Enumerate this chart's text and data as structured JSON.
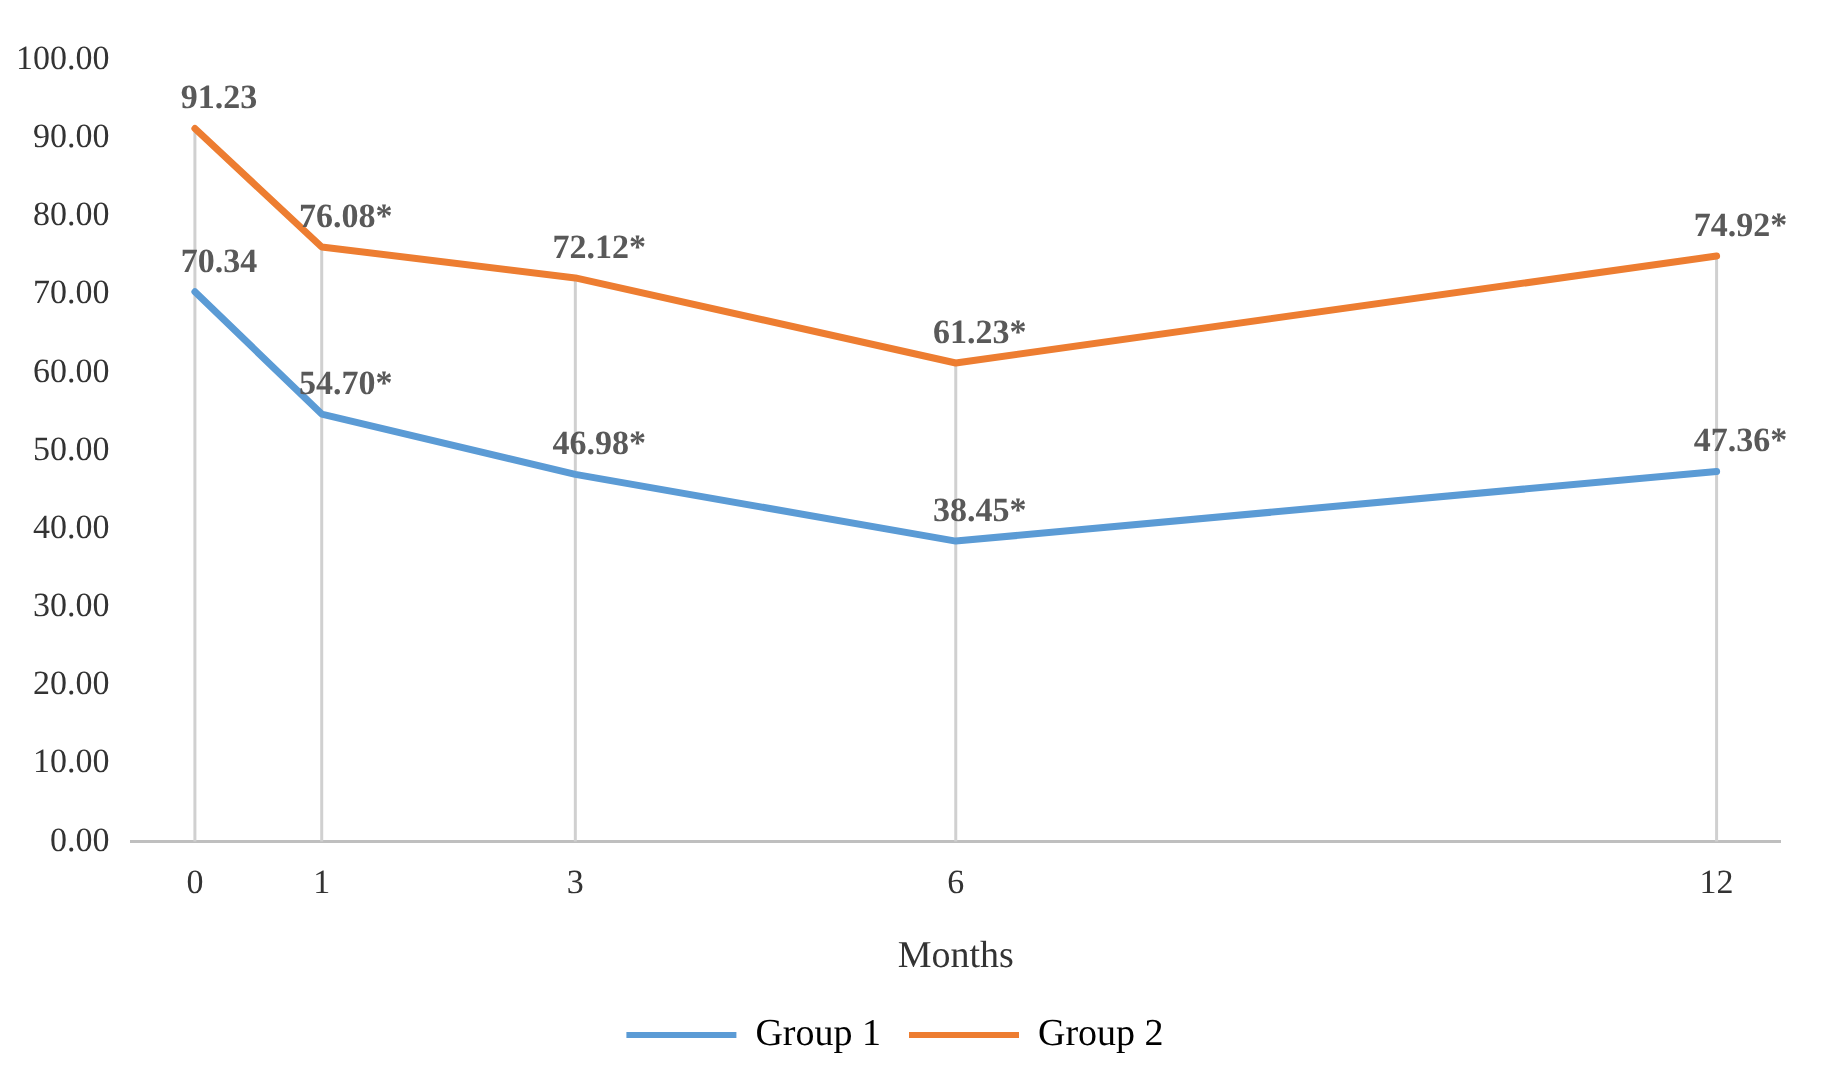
{
  "chart_data": {
    "type": "line",
    "xlabel": "Months",
    "x": [
      0,
      1,
      3,
      6,
      12
    ],
    "xlim": [
      -0.5,
      12.5
    ],
    "xticks": [
      0,
      1,
      3,
      6,
      12
    ],
    "ylim": [
      0,
      100
    ],
    "yticks": [
      {
        "value": 0,
        "label": "0.00"
      },
      {
        "value": 10,
        "label": "10.00"
      },
      {
        "value": 20,
        "label": "20.00"
      },
      {
        "value": 30,
        "label": "30.00"
      },
      {
        "value": 40,
        "label": "40.00"
      },
      {
        "value": 50,
        "label": "50.00"
      },
      {
        "value": 60,
        "label": "60.00"
      },
      {
        "value": 70,
        "label": "70.00"
      },
      {
        "value": 80,
        "label": "80.00"
      },
      {
        "value": 90,
        "label": "90.00"
      },
      {
        "value": 100,
        "label": "100.00"
      }
    ],
    "series": [
      {
        "name": "Group 1",
        "color": "#5b9bd5",
        "values": [
          70.34,
          54.7,
          46.98,
          38.45,
          47.36
        ],
        "value_labels": [
          "70.34",
          "54.70*",
          "46.98*",
          "38.45*",
          "47.36*"
        ]
      },
      {
        "name": "Group 2",
        "color": "#ed7d31",
        "values": [
          91.23,
          76.08,
          72.12,
          61.23,
          74.92
        ],
        "value_labels": [
          "91.23",
          "76.08*",
          "72.12*",
          "61.23*",
          "74.92*"
        ]
      }
    ],
    "grid": "x",
    "legend": "bottom",
    "marker": "none",
    "line_style": "solid"
  }
}
